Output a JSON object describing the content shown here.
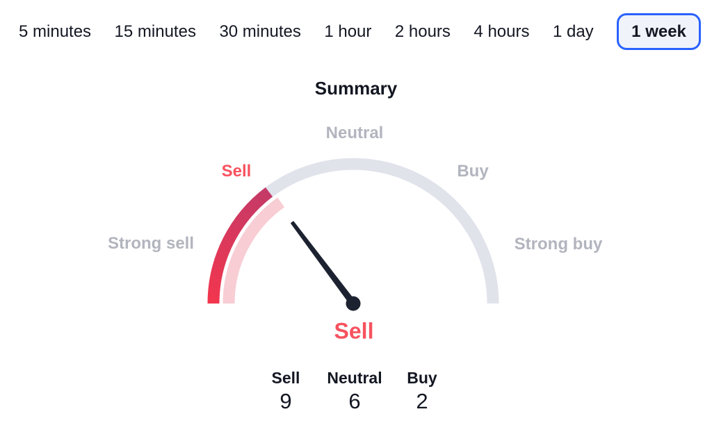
{
  "colors": {
    "accent_blue": "#2962ff",
    "sell_red": "#f7525f",
    "gradient_start": "#f2364e",
    "gradient_end": "#c43a68",
    "pink_band": "#f8cdd4",
    "track_gray": "#e1e3eb",
    "label_gray": "#b2b5be",
    "text_dark": "#131722",
    "needle_dark": "#1c2230",
    "selected_tab_bg": "#f0f3fa"
  },
  "timeframes": {
    "items": [
      {
        "label": "5 minutes",
        "selected": false
      },
      {
        "label": "15 minutes",
        "selected": false
      },
      {
        "label": "30 minutes",
        "selected": false
      },
      {
        "label": "1 hour",
        "selected": false
      },
      {
        "label": "2 hours",
        "selected": false
      },
      {
        "label": "4 hours",
        "selected": false
      },
      {
        "label": "1 day",
        "selected": false
      },
      {
        "label": "1 week",
        "selected": true
      }
    ]
  },
  "gauge": {
    "title": "Summary",
    "zone_labels": {
      "strong_sell": "Strong sell",
      "sell": "Sell",
      "neutral": "Neutral",
      "buy": "Buy",
      "strong_buy": "Strong buy"
    },
    "active_zone": "Sell",
    "verdict": "Sell",
    "needle_angle_deg": 126.9,
    "fill_start_deg": 180,
    "fill_end_deg": 127,
    "inner_band_end_deg": 125.5,
    "arc_span_deg": [
      180,
      0
    ]
  },
  "counts": {
    "columns": [
      {
        "label": "Sell",
        "value": "9"
      },
      {
        "label": "Neutral",
        "value": "6"
      },
      {
        "label": "Buy",
        "value": "2"
      }
    ]
  },
  "chart_data": {
    "type": "gauge",
    "title": "Summary",
    "zones": [
      "Strong sell",
      "Sell",
      "Neutral",
      "Buy",
      "Strong buy"
    ],
    "needle_points_to": "Sell",
    "needle_angle_deg": 126.9,
    "verdict": "Sell",
    "series": [
      {
        "name": "Sell",
        "value": 9
      },
      {
        "name": "Neutral",
        "value": 6
      },
      {
        "name": "Buy",
        "value": 2
      }
    ],
    "selected_timeframe": "1 week",
    "timeframes": [
      "5 minutes",
      "15 minutes",
      "30 minutes",
      "1 hour",
      "2 hours",
      "4 hours",
      "1 day",
      "1 week"
    ]
  }
}
